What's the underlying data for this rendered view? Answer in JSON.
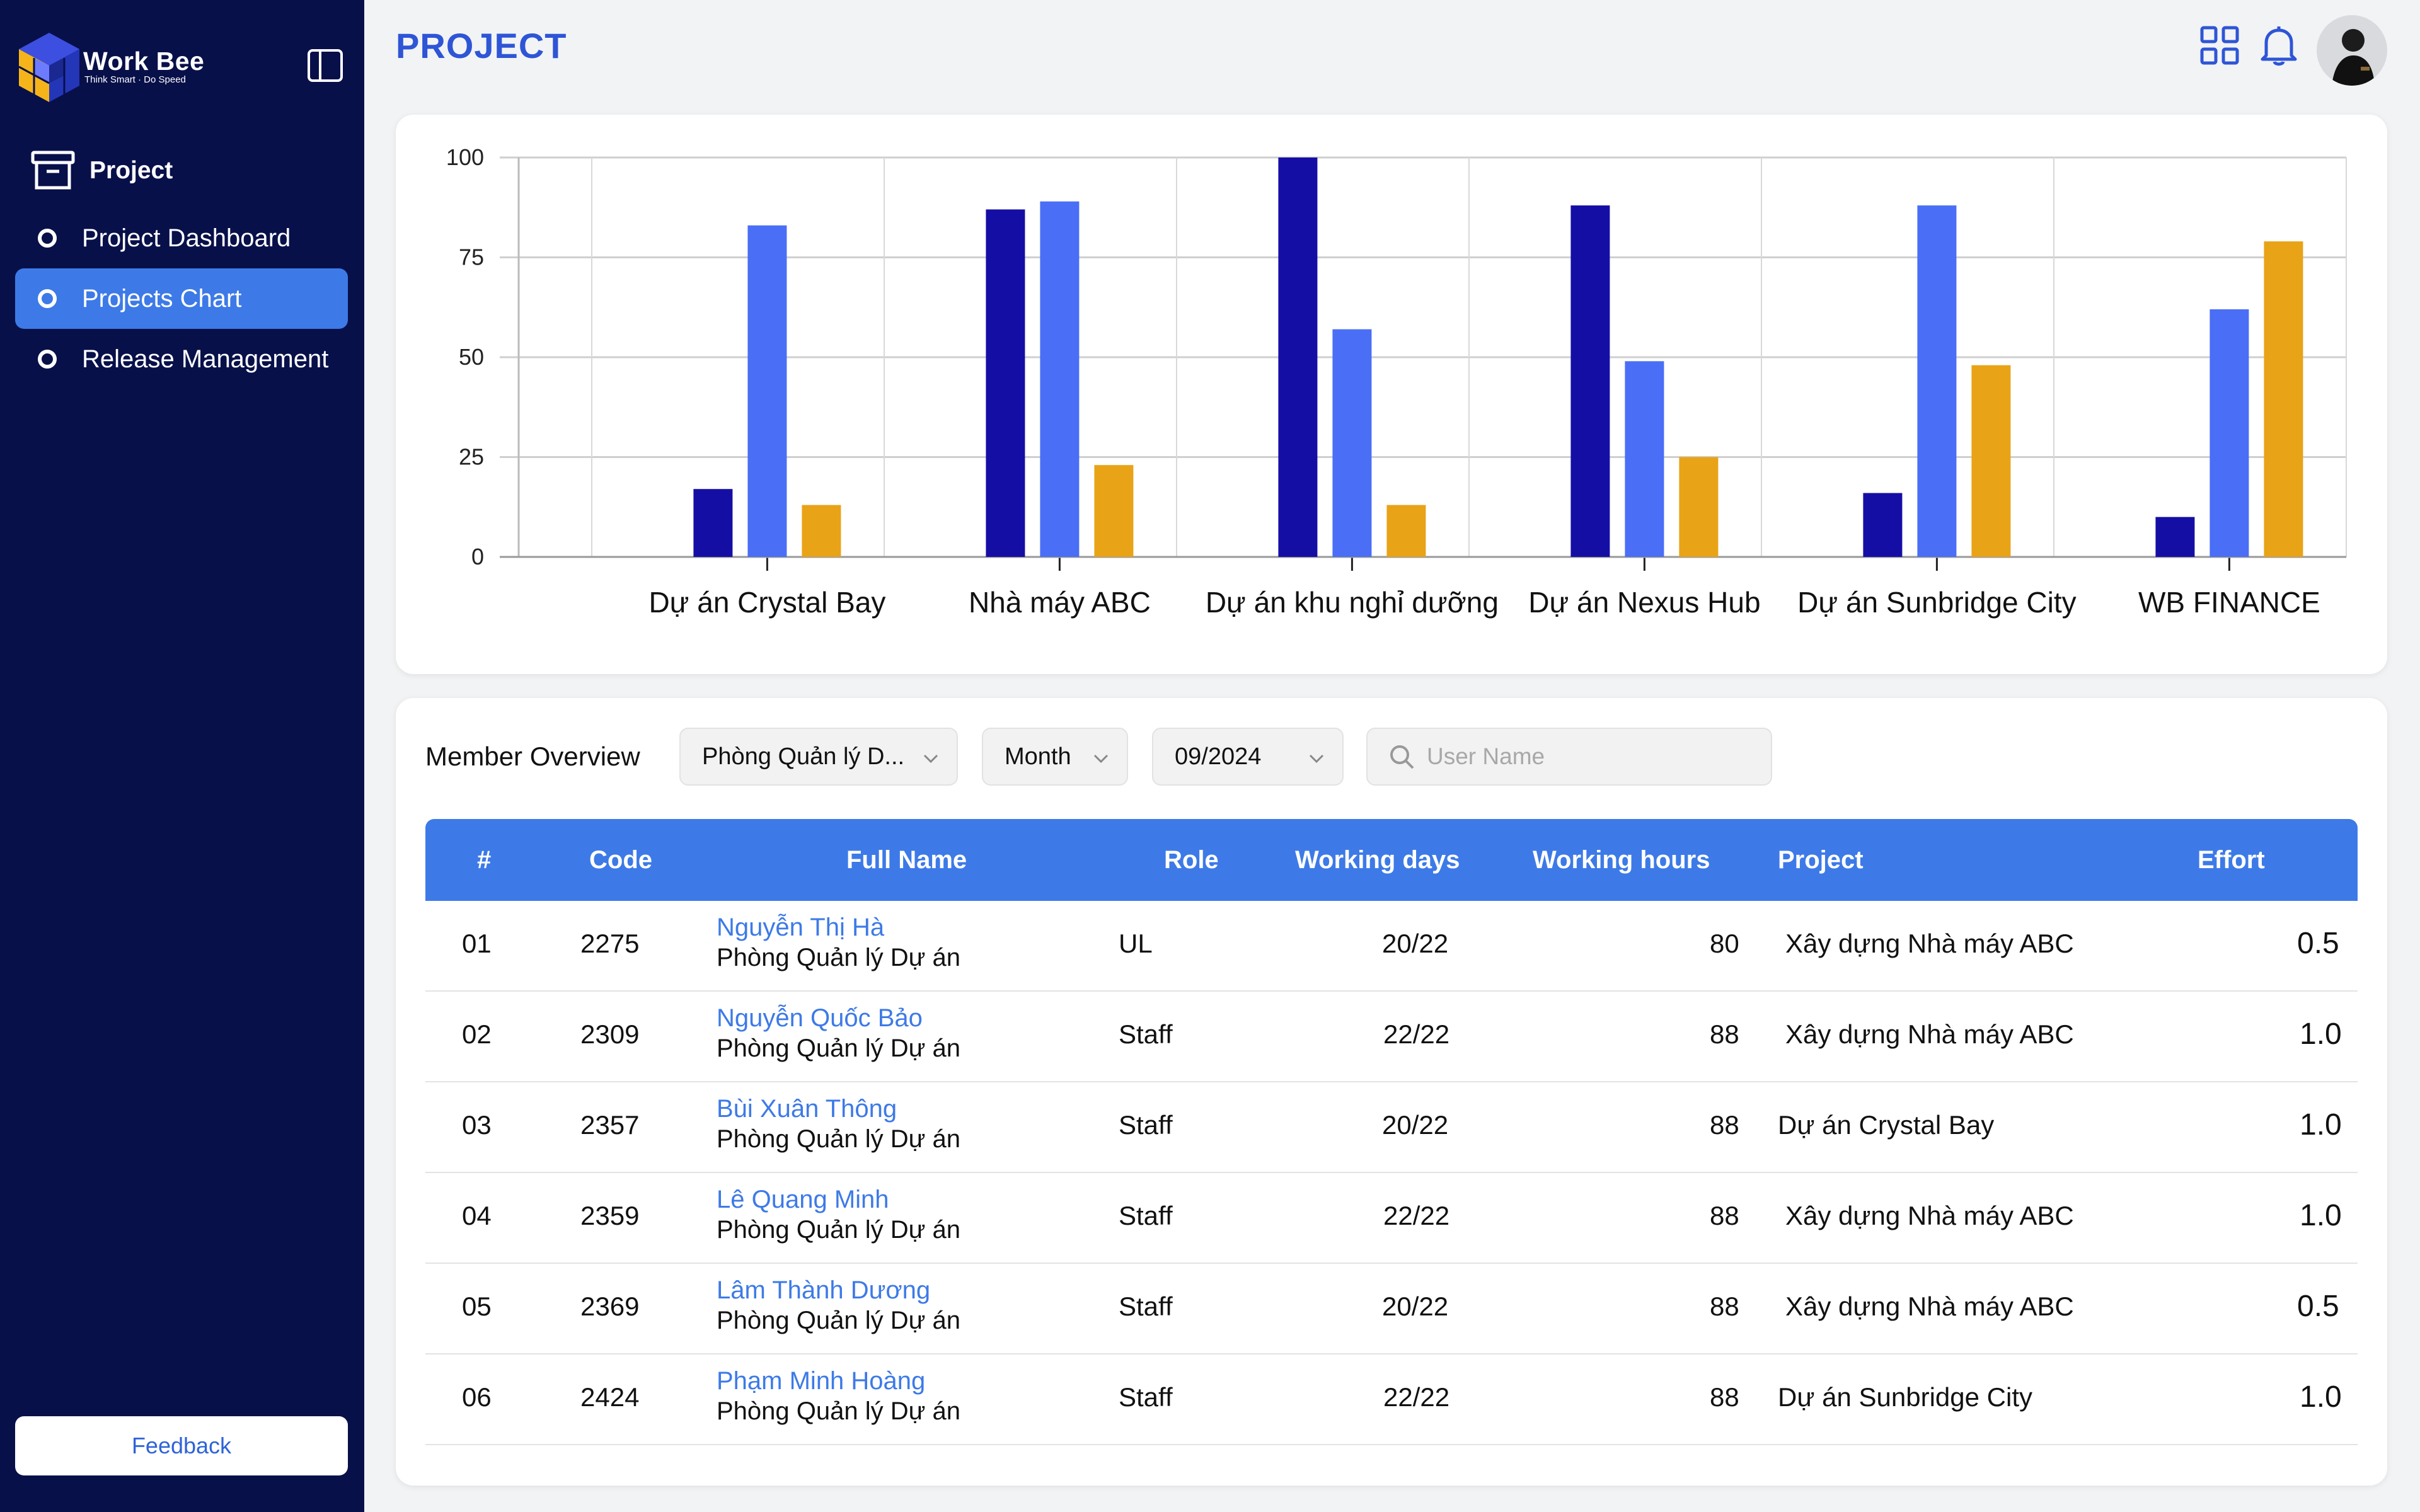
{
  "sidebar": {
    "brand_name": "Work Bee",
    "brand_tagline": "Think Smart · Do Speed",
    "section_label": "Project",
    "items": [
      {
        "label": "Project Dashboard",
        "active": false
      },
      {
        "label": "Projects Chart",
        "active": true
      },
      {
        "label": "Release Management",
        "active": false
      }
    ],
    "feedback_label": "Feedback"
  },
  "header": {
    "title": "PROJECT",
    "icons": [
      "grid-icon",
      "bell-icon",
      "avatar"
    ]
  },
  "chart_data": {
    "type": "bar",
    "categories": [
      "Dự án Crystal Bay",
      "Nhà máy ABC",
      "Dự án khu nghỉ dưỡng",
      "Dự án Nexus Hub",
      "Dự án Sunbridge City",
      "WB FINANCE"
    ],
    "series": [
      {
        "color": "#150ea5",
        "values": [
          17,
          87,
          100,
          88,
          16,
          10
        ]
      },
      {
        "color": "#4a6ef5",
        "values": [
          83,
          89,
          57,
          49,
          88,
          62
        ]
      },
      {
        "color": "#e8a317",
        "values": [
          13,
          23,
          13,
          25,
          48,
          79
        ]
      }
    ],
    "yticks": [
      "0",
      "25",
      "50",
      "75",
      "100"
    ],
    "ylim": [
      0,
      100
    ],
    "grid": true,
    "legend": "none"
  },
  "filters": {
    "label": "Member Overview",
    "department": "Phòng Quản lý D...",
    "period": "Month",
    "date": "09/2024",
    "search_placeholder": "User Name"
  },
  "table": {
    "headers": [
      "#",
      "Code",
      "Full Name",
      "Role",
      "Working days",
      "Working hours",
      "Project",
      "Effort"
    ],
    "rows": [
      {
        "no": "01",
        "code": "2275",
        "name": "Nguyễn Thị Hà",
        "dept": "Phòng Quản lý Dự án",
        "role": "UL",
        "days": "20/22",
        "hours": "80",
        "project": "Xây dựng Nhà máy ABC",
        "effort": "0.5"
      },
      {
        "no": "02",
        "code": "2309",
        "name": "Nguyễn Quốc Bảo",
        "dept": "Phòng Quản lý Dự án",
        "role": "Staff",
        "days": "22/22",
        "hours": "88",
        "project": "Xây dựng Nhà máy ABC",
        "effort": "1.0"
      },
      {
        "no": "03",
        "code": "2357",
        "name": "Bùi Xuân Thông",
        "dept": "Phòng Quản lý Dự án",
        "role": "Staff",
        "days": "20/22",
        "hours": "88",
        "project": "Dự án Crystal Bay",
        "effort": "1.0"
      },
      {
        "no": "04",
        "code": "2359",
        "name": "Lê Quang Minh",
        "dept": "Phòng Quản lý Dự án",
        "role": "Staff",
        "days": "22/22",
        "hours": "88",
        "project": "Xây dựng Nhà máy ABC",
        "effort": "1.0"
      },
      {
        "no": "05",
        "code": "2369",
        "name": "Lâm Thành Dương",
        "dept": "Phòng Quản lý Dự án",
        "role": "Staff",
        "days": "20/22",
        "hours": "88",
        "project": "Xây dựng Nhà máy ABC",
        "effort": "0.5"
      },
      {
        "no": "06",
        "code": "2424",
        "name": "Phạm Minh Hoàng",
        "dept": "Phòng Quản lý Dự án",
        "role": "Staff",
        "days": "22/22",
        "hours": "88",
        "project": "Dự án Sunbridge City",
        "effort": "1.0"
      }
    ]
  }
}
